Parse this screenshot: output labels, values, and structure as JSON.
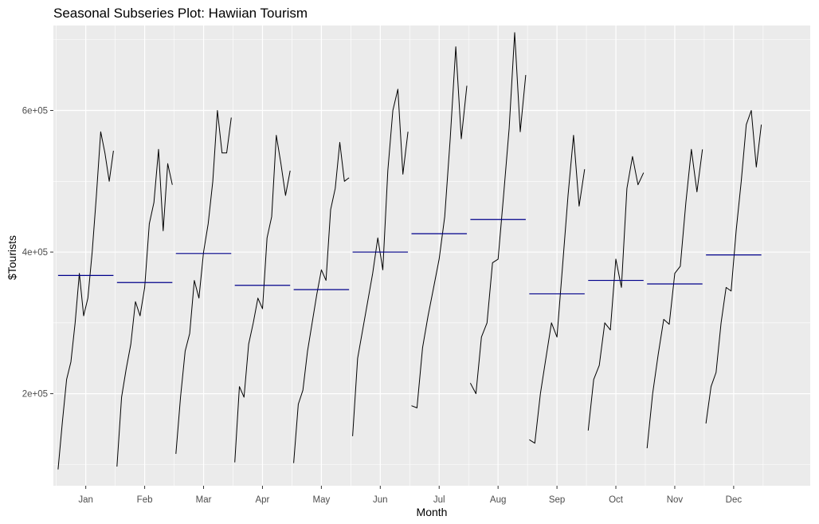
{
  "chart_data": {
    "type": "line",
    "title": "Seasonal Subseries Plot: Hawiian Tourism",
    "xlabel": "Month",
    "ylabel": "$Tourists",
    "ylim": [
      70000,
      720000
    ],
    "y_ticks": [
      200000,
      400000,
      600000
    ],
    "y_tick_labels": [
      "2e+05",
      "4e+05",
      "6e+05"
    ],
    "grid": true,
    "background": "#ebebeb",
    "grid_color": "#ffffff",
    "line_color": "#000000",
    "mean_color": "#00008b",
    "subseries": [
      {
        "month": "Jan",
        "mean": 367000,
        "values": [
          93000,
          160000,
          220000,
          245000,
          300000,
          370000,
          310000,
          335000,
          400000,
          480000,
          570000,
          540000,
          500000,
          543000
        ]
      },
      {
        "month": "Feb",
        "mean": 357000,
        "values": [
          97000,
          195000,
          235000,
          270000,
          330000,
          310000,
          350000,
          440000,
          470000,
          545000,
          430000,
          525000,
          495000
        ]
      },
      {
        "month": "Mar",
        "mean": 398000,
        "values": [
          115000,
          195000,
          260000,
          285000,
          360000,
          335000,
          400000,
          440000,
          500000,
          600000,
          540000,
          540000,
          590000
        ]
      },
      {
        "month": "Apr",
        "mean": 353000,
        "values": [
          103000,
          210000,
          195000,
          270000,
          300000,
          335000,
          320000,
          420000,
          450000,
          565000,
          525000,
          480000,
          515000
        ]
      },
      {
        "month": "May",
        "mean": 347000,
        "values": [
          102000,
          185000,
          205000,
          260000,
          300000,
          340000,
          375000,
          360000,
          460000,
          490000,
          555000,
          500000,
          505000
        ]
      },
      {
        "month": "Jun",
        "mean": 400000,
        "values": [
          140000,
          250000,
          290000,
          330000,
          370000,
          420000,
          375000,
          515000,
          600000,
          630000,
          510000,
          570000
        ]
      },
      {
        "month": "Jul",
        "mean": 426000,
        "values": [
          183000,
          180000,
          265000,
          310000,
          350000,
          390000,
          450000,
          560000,
          690000,
          560000,
          635000
        ]
      },
      {
        "month": "Aug",
        "mean": 446000,
        "values": [
          215000,
          200000,
          280000,
          300000,
          385000,
          390000,
          480000,
          575000,
          710000,
          570000,
          650000
        ]
      },
      {
        "month": "Sep",
        "mean": 341000,
        "values": [
          135000,
          130000,
          200000,
          250000,
          300000,
          280000,
          380000,
          480000,
          565000,
          465000,
          517000
        ]
      },
      {
        "month": "Oct",
        "mean": 360000,
        "values": [
          148000,
          220000,
          240000,
          300000,
          290000,
          390000,
          350000,
          490000,
          535000,
          495000,
          512000
        ]
      },
      {
        "month": "Nov",
        "mean": 355000,
        "values": [
          123000,
          200000,
          255000,
          305000,
          298000,
          370000,
          380000,
          470000,
          545000,
          485000,
          545000
        ]
      },
      {
        "month": "Dec",
        "mean": 396000,
        "values": [
          158000,
          210000,
          230000,
          300000,
          350000,
          345000,
          430000,
          500000,
          580000,
          600000,
          520000,
          580000
        ]
      }
    ]
  }
}
